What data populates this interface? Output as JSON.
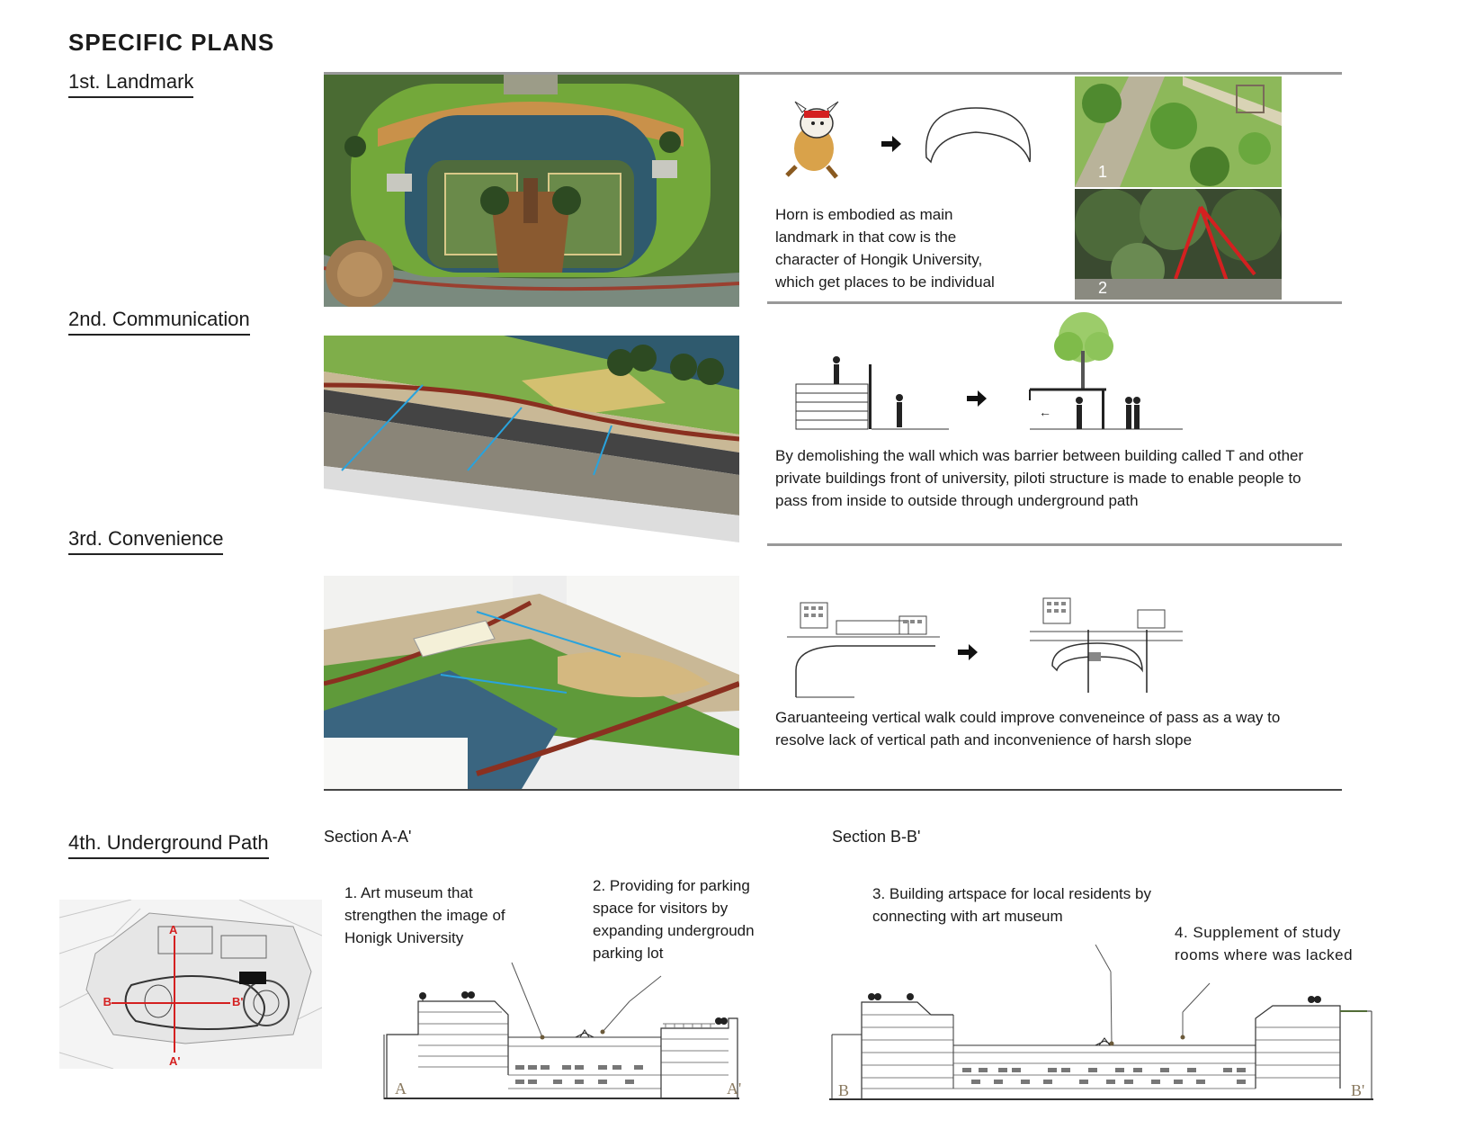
{
  "title": "SPECIFIC  PLANS",
  "sections": {
    "landmark": {
      "heading": "1st. Landmark",
      "description": "Horn is embodied as main landmark in that cow is the character of Hongik University, which get places to be individual",
      "photo_labels": [
        "1",
        "2"
      ]
    },
    "communication": {
      "heading": "2nd. Communication",
      "description": "By demolishing the wall which was barrier between building called T and other private buildings front of university, piloti structure is made to enable people to pass from inside to outside through underground path"
    },
    "convenience": {
      "heading": "3rd. Convenience",
      "description": "Garuanteeing vertical walk could improve conveneince of pass as a way to resolve lack of vertical path and inconvenience of harsh slope"
    },
    "underground": {
      "heading": "4th. Underground Path",
      "section_a_title": "Section A-A'",
      "section_b_title": "Section B-B'",
      "note1": "1. Art museum that strengthen the image of Honigk University",
      "note2": "2. Providing for parking space for  visitors by expanding undergroudn parking lot",
      "note3": "3. Building artspace for local residents by connecting with art museum",
      "note4": "4. Supplement of study rooms where was lacked",
      "section_a_left": "A",
      "section_a_right": "A'",
      "section_b_left": "B",
      "section_b_right": "B'",
      "map_labels": {
        "a_top": "A",
        "a_bottom": "A'",
        "b_left": "B",
        "b_right": "B'"
      }
    }
  },
  "colors": {
    "accent_red": "#d42020",
    "arrow_blue": "#29a3dd",
    "grass": "#6fa53a",
    "water": "#2f5a6e",
    "wood": "#c9914a"
  }
}
